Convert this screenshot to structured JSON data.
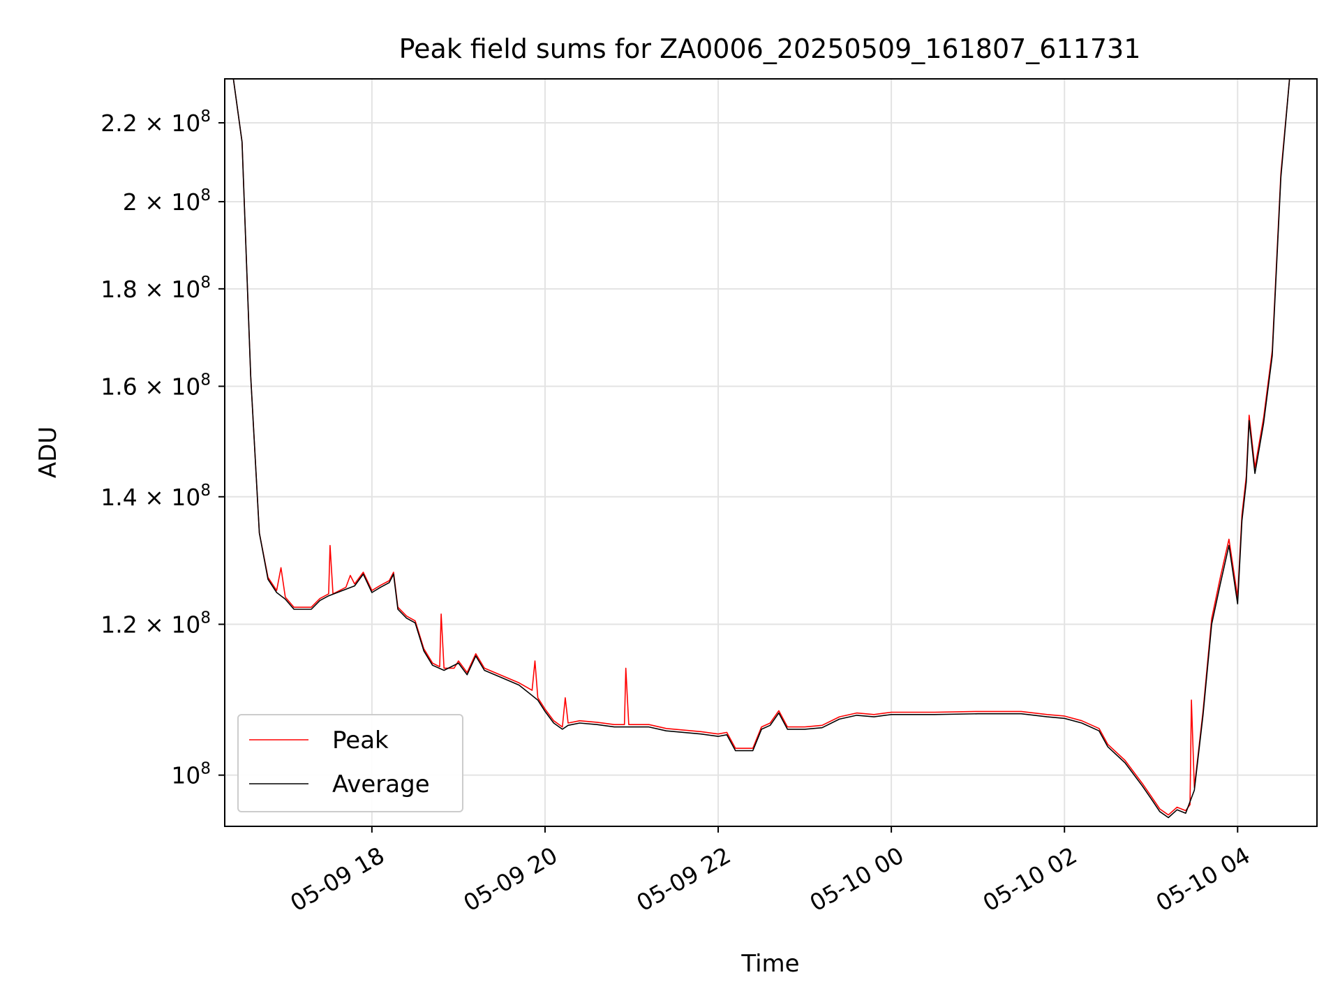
{
  "chart_data": {
    "type": "line",
    "title": "Peak field sums for ZA0006_20250509_161807_611731",
    "xlabel": "Time",
    "ylabel": "ADU",
    "x_tick_labels": [
      "05-09 18",
      "05-09 20",
      "05-09 22",
      "05-10 00",
      "05-10 02",
      "05-10 04"
    ],
    "x_ticks": [
      "2025-05-09 18:00",
      "2025-05-09 20:00",
      "2025-05-09 22:00",
      "2025-05-10 00:00",
      "2025-05-10 02:00",
      "2025-05-10 04:00"
    ],
    "xlim": [
      "2025-05-09 16:18",
      "2025-05-10 04:55"
    ],
    "y_scale": "log",
    "ylim": [
      94000000,
      232000000
    ],
    "y_ticks": [
      {
        "value": 100000000,
        "mantissa": "",
        "exponent": "8"
      },
      {
        "value": 120000000,
        "mantissa": "1.2",
        "exponent": "8"
      },
      {
        "value": 140000000,
        "mantissa": "1.4",
        "exponent": "8"
      },
      {
        "value": 160000000,
        "mantissa": "1.6",
        "exponent": "8"
      },
      {
        "value": 180000000,
        "mantissa": "1.8",
        "exponent": "8"
      },
      {
        "value": 200000000,
        "mantissa": "2",
        "exponent": "8"
      },
      {
        "value": 220000000,
        "mantissa": "2.2",
        "exponent": "8"
      }
    ],
    "grid": true,
    "legend": {
      "placement": "lower-left"
    },
    "colors": {
      "Peak": "#ff0000",
      "Average": "#000000",
      "grid": "#e3e3e3"
    },
    "series": [
      {
        "name": "Peak",
        "points": [
          [
            "2025-05-09 16:24",
            232000000
          ],
          [
            "2025-05-09 16:30",
            215000000
          ],
          [
            "2025-05-09 16:36",
            162000000
          ],
          [
            "2025-05-09 16:42",
            134000000
          ],
          [
            "2025-05-09 16:48",
            127000000
          ],
          [
            "2025-05-09 16:54",
            125000000
          ],
          [
            "2025-05-09 16:57",
            128500000
          ],
          [
            "2025-05-09 17:00",
            124000000
          ],
          [
            "2025-05-09 17:06",
            122500000
          ],
          [
            "2025-05-09 17:18",
            122500000
          ],
          [
            "2025-05-09 17:24",
            123800000
          ],
          [
            "2025-05-09 17:30",
            124500000
          ],
          [
            "2025-05-09 17:31",
            132000000
          ],
          [
            "2025-05-09 17:33",
            124500000
          ],
          [
            "2025-05-09 17:42",
            125500000
          ],
          [
            "2025-05-09 17:45",
            127300000
          ],
          [
            "2025-05-09 17:48",
            126000000
          ],
          [
            "2025-05-09 17:54",
            127800000
          ],
          [
            "2025-05-09 18:00",
            125000000
          ],
          [
            "2025-05-09 18:06",
            125800000
          ],
          [
            "2025-05-09 18:12",
            126500000
          ],
          [
            "2025-05-09 18:15",
            127800000
          ],
          [
            "2025-05-09 18:18",
            122500000
          ],
          [
            "2025-05-09 18:24",
            121200000
          ],
          [
            "2025-05-09 18:30",
            120500000
          ],
          [
            "2025-05-09 18:36",
            116500000
          ],
          [
            "2025-05-09 18:42",
            114500000
          ],
          [
            "2025-05-09 18:47",
            114000000
          ],
          [
            "2025-05-09 18:48",
            121500000
          ],
          [
            "2025-05-09 18:50",
            113800000
          ],
          [
            "2025-05-09 18:57",
            113800000
          ],
          [
            "2025-05-09 19:00",
            114800000
          ],
          [
            "2025-05-09 19:06",
            113200000
          ],
          [
            "2025-05-09 19:12",
            115800000
          ],
          [
            "2025-05-09 19:18",
            113800000
          ],
          [
            "2025-05-09 19:30",
            112800000
          ],
          [
            "2025-05-09 19:42",
            111800000
          ],
          [
            "2025-05-09 19:51",
            110800000
          ],
          [
            "2025-05-09 19:53",
            114800000
          ],
          [
            "2025-05-09 19:55",
            109800000
          ],
          [
            "2025-05-09 20:00",
            108300000
          ],
          [
            "2025-05-09 20:06",
            106800000
          ],
          [
            "2025-05-09 20:12",
            106000000
          ],
          [
            "2025-05-09 20:14",
            109800000
          ],
          [
            "2025-05-09 20:16",
            106500000
          ],
          [
            "2025-05-09 20:24",
            106800000
          ],
          [
            "2025-05-09 20:36",
            106600000
          ],
          [
            "2025-05-09 20:48",
            106300000
          ],
          [
            "2025-05-09 20:55",
            106300000
          ],
          [
            "2025-05-09 20:56",
            113800000
          ],
          [
            "2025-05-09 20:58",
            106300000
          ],
          [
            "2025-05-09 21:12",
            106300000
          ],
          [
            "2025-05-09 21:24",
            105800000
          ],
          [
            "2025-05-09 21:36",
            105600000
          ],
          [
            "2025-05-09 21:48",
            105400000
          ],
          [
            "2025-05-09 22:00",
            105100000
          ],
          [
            "2025-05-09 22:06",
            105300000
          ],
          [
            "2025-05-09 22:12",
            103300000
          ],
          [
            "2025-05-09 22:24",
            103300000
          ],
          [
            "2025-05-09 22:30",
            106000000
          ],
          [
            "2025-05-09 22:36",
            106500000
          ],
          [
            "2025-05-09 22:42",
            108100000
          ],
          [
            "2025-05-09 22:48",
            106000000
          ],
          [
            "2025-05-09 23:00",
            106000000
          ],
          [
            "2025-05-09 23:12",
            106200000
          ],
          [
            "2025-05-09 23:24",
            107300000
          ],
          [
            "2025-05-09 23:36",
            107800000
          ],
          [
            "2025-05-09 23:48",
            107600000
          ],
          [
            "2025-05-10 00:00",
            107900000
          ],
          [
            "2025-05-10 00:30",
            107900000
          ],
          [
            "2025-05-10 01:00",
            108000000
          ],
          [
            "2025-05-10 01:30",
            108000000
          ],
          [
            "2025-05-10 01:48",
            107600000
          ],
          [
            "2025-05-10 02:00",
            107400000
          ],
          [
            "2025-05-10 02:12",
            106800000
          ],
          [
            "2025-05-10 02:24",
            105800000
          ],
          [
            "2025-05-10 02:30",
            103800000
          ],
          [
            "2025-05-10 02:42",
            101800000
          ],
          [
            "2025-05-10 02:54",
            99000000
          ],
          [
            "2025-05-10 03:00",
            97500000
          ],
          [
            "2025-05-10 03:06",
            96000000
          ],
          [
            "2025-05-10 03:12",
            95300000
          ],
          [
            "2025-05-10 03:18",
            96200000
          ],
          [
            "2025-05-10 03:24",
            95800000
          ],
          [
            "2025-05-10 03:27",
            96500000
          ],
          [
            "2025-05-10 03:28",
            109500000
          ],
          [
            "2025-05-10 03:30",
            98500000
          ],
          [
            "2025-05-10 03:36",
            108000000
          ],
          [
            "2025-05-10 03:42",
            120800000
          ],
          [
            "2025-05-10 03:48",
            127000000
          ],
          [
            "2025-05-10 03:54",
            133000000
          ],
          [
            "2025-05-10 04:00",
            124000000
          ],
          [
            "2025-05-10 04:03",
            137000000
          ],
          [
            "2025-05-10 04:06",
            143500000
          ],
          [
            "2025-05-10 04:08",
            154500000
          ],
          [
            "2025-05-10 04:12",
            145000000
          ],
          [
            "2025-05-10 04:18",
            154000000
          ],
          [
            "2025-05-10 04:24",
            167000000
          ],
          [
            "2025-05-10 04:30",
            207000000
          ],
          [
            "2025-05-10 04:36",
            232000000
          ]
        ]
      },
      {
        "name": "Average",
        "points": [
          [
            "2025-05-09 16:24",
            232000000
          ],
          [
            "2025-05-09 16:30",
            215000000
          ],
          [
            "2025-05-09 16:36",
            162000000
          ],
          [
            "2025-05-09 16:42",
            134000000
          ],
          [
            "2025-05-09 16:48",
            126700000
          ],
          [
            "2025-05-09 16:54",
            124700000
          ],
          [
            "2025-05-09 17:00",
            123700000
          ],
          [
            "2025-05-09 17:06",
            122200000
          ],
          [
            "2025-05-09 17:18",
            122200000
          ],
          [
            "2025-05-09 17:24",
            123500000
          ],
          [
            "2025-05-09 17:30",
            124200000
          ],
          [
            "2025-05-09 17:42",
            125200000
          ],
          [
            "2025-05-09 17:48",
            125700000
          ],
          [
            "2025-05-09 17:54",
            127500000
          ],
          [
            "2025-05-09 18:00",
            124700000
          ],
          [
            "2025-05-09 18:06",
            125500000
          ],
          [
            "2025-05-09 18:12",
            126200000
          ],
          [
            "2025-05-09 18:15",
            127500000
          ],
          [
            "2025-05-09 18:18",
            122200000
          ],
          [
            "2025-05-09 18:24",
            120900000
          ],
          [
            "2025-05-09 18:30",
            120200000
          ],
          [
            "2025-05-09 18:36",
            116200000
          ],
          [
            "2025-05-09 18:42",
            114200000
          ],
          [
            "2025-05-09 18:50",
            113500000
          ],
          [
            "2025-05-09 19:00",
            114500000
          ],
          [
            "2025-05-09 19:06",
            112900000
          ],
          [
            "2025-05-09 19:12",
            115500000
          ],
          [
            "2025-05-09 19:18",
            113500000
          ],
          [
            "2025-05-09 19:30",
            112500000
          ],
          [
            "2025-05-09 19:42",
            111500000
          ],
          [
            "2025-05-09 19:55",
            109500000
          ],
          [
            "2025-05-09 20:00",
            108000000
          ],
          [
            "2025-05-09 20:06",
            106500000
          ],
          [
            "2025-05-09 20:12",
            105700000
          ],
          [
            "2025-05-09 20:16",
            106200000
          ],
          [
            "2025-05-09 20:24",
            106500000
          ],
          [
            "2025-05-09 20:36",
            106300000
          ],
          [
            "2025-05-09 20:48",
            106000000
          ],
          [
            "2025-05-09 21:12",
            106000000
          ],
          [
            "2025-05-09 21:24",
            105500000
          ],
          [
            "2025-05-09 21:36",
            105300000
          ],
          [
            "2025-05-09 21:48",
            105100000
          ],
          [
            "2025-05-09 22:00",
            104800000
          ],
          [
            "2025-05-09 22:06",
            105000000
          ],
          [
            "2025-05-09 22:12",
            103000000
          ],
          [
            "2025-05-09 22:24",
            103000000
          ],
          [
            "2025-05-09 22:30",
            105700000
          ],
          [
            "2025-05-09 22:36",
            106200000
          ],
          [
            "2025-05-09 22:42",
            107800000
          ],
          [
            "2025-05-09 22:48",
            105700000
          ],
          [
            "2025-05-09 23:00",
            105700000
          ],
          [
            "2025-05-09 23:12",
            105900000
          ],
          [
            "2025-05-09 23:24",
            107000000
          ],
          [
            "2025-05-09 23:36",
            107500000
          ],
          [
            "2025-05-09 23:48",
            107300000
          ],
          [
            "2025-05-10 00:00",
            107600000
          ],
          [
            "2025-05-10 00:30",
            107600000
          ],
          [
            "2025-05-10 01:00",
            107700000
          ],
          [
            "2025-05-10 01:30",
            107700000
          ],
          [
            "2025-05-10 01:48",
            107300000
          ],
          [
            "2025-05-10 02:00",
            107100000
          ],
          [
            "2025-05-10 02:12",
            106500000
          ],
          [
            "2025-05-10 02:24",
            105500000
          ],
          [
            "2025-05-10 02:30",
            103500000
          ],
          [
            "2025-05-10 02:42",
            101500000
          ],
          [
            "2025-05-10 02:54",
            98700000
          ],
          [
            "2025-05-10 03:00",
            97200000
          ],
          [
            "2025-05-10 03:06",
            95700000
          ],
          [
            "2025-05-10 03:12",
            95000000
          ],
          [
            "2025-05-10 03:18",
            95900000
          ],
          [
            "2025-05-10 03:24",
            95500000
          ],
          [
            "2025-05-10 03:30",
            98200000
          ],
          [
            "2025-05-10 03:36",
            107500000
          ],
          [
            "2025-05-10 03:42",
            120000000
          ],
          [
            "2025-05-10 03:48",
            126000000
          ],
          [
            "2025-05-10 03:54",
            132000000
          ],
          [
            "2025-05-10 04:00",
            123000000
          ],
          [
            "2025-05-10 04:03",
            136000000
          ],
          [
            "2025-05-10 04:06",
            142500000
          ],
          [
            "2025-05-10 04:08",
            153500000
          ],
          [
            "2025-05-10 04:12",
            144000000
          ],
          [
            "2025-05-10 04:18",
            153000000
          ],
          [
            "2025-05-10 04:24",
            166000000
          ],
          [
            "2025-05-10 04:30",
            206000000
          ],
          [
            "2025-05-10 04:36",
            232000000
          ]
        ]
      }
    ]
  }
}
